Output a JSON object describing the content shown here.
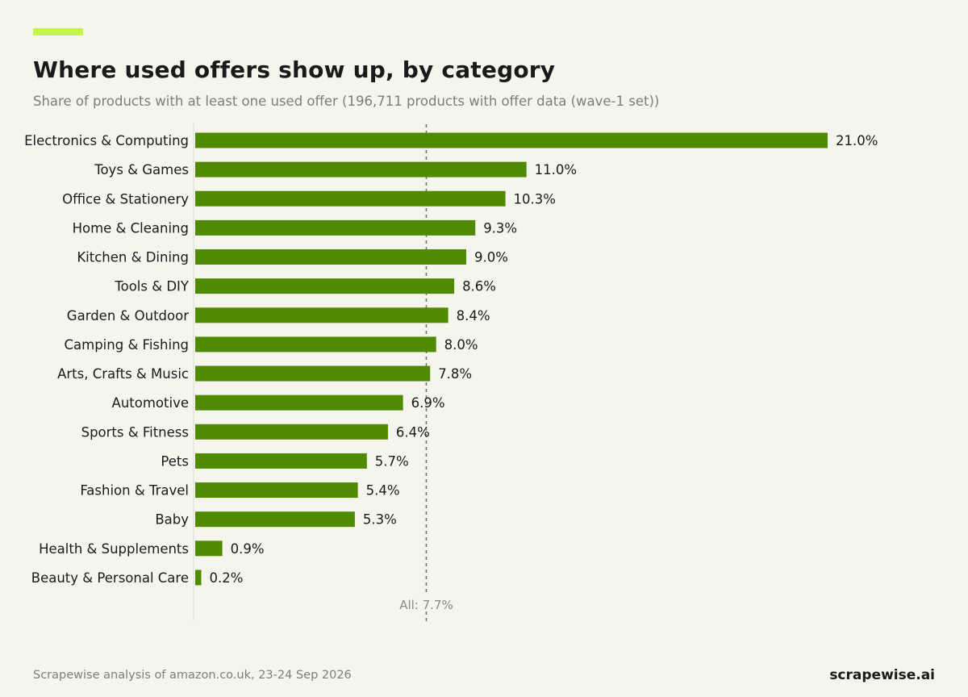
{
  "header": {
    "title": "Where used offers show up, by category",
    "subtitle": "Share of products with at least one used offer (196,711 products with offer data (wave-1 set))"
  },
  "footer": {
    "source": "Scrapewise analysis of amazon.co.uk, 23-24 Sep 2026",
    "brand": "scrapewise.ai"
  },
  "colors": {
    "bar": "#4f8a00",
    "accent": "#c3f54a",
    "background": "#f5f4ed",
    "reference_line": "#777777"
  },
  "chart_data": {
    "type": "bar",
    "orientation": "horizontal",
    "title": "Where used offers show up, by category",
    "subtitle": "Share of products with at least one used offer (196,711 products with offer data (wave-1 set))",
    "categories": [
      "Electronics & Computing",
      "Toys & Games",
      "Office & Stationery",
      "Home & Cleaning",
      "Kitchen & Dining",
      "Tools & DIY",
      "Garden & Outdoor",
      "Camping & Fishing",
      "Arts, Crafts & Music",
      "Automotive",
      "Sports & Fitness",
      "Pets",
      "Fashion & Travel",
      "Baby",
      "Health & Supplements",
      "Beauty & Personal Care"
    ],
    "values": [
      21.0,
      11.0,
      10.3,
      9.3,
      9.0,
      8.6,
      8.4,
      8.0,
      7.8,
      6.9,
      6.4,
      5.7,
      5.4,
      5.3,
      0.9,
      0.2
    ],
    "value_labels": [
      "21.0%",
      "11.0%",
      "10.3%",
      "9.3%",
      "9.0%",
      "8.6%",
      "8.4%",
      "8.0%",
      "7.8%",
      "6.9%",
      "6.4%",
      "5.7%",
      "5.4%",
      "5.3%",
      "0.9%",
      "0.2%"
    ],
    "unit": "%",
    "reference_line": {
      "value": 7.7,
      "label": "All: 7.7%",
      "style": "dashed"
    },
    "xlim": [
      0,
      21
    ],
    "grid": false,
    "legend": "none"
  }
}
